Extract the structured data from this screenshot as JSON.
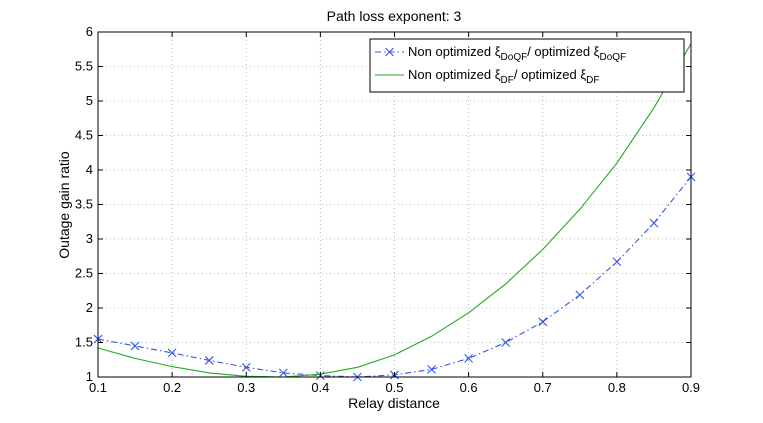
{
  "chart_data": {
    "type": "line",
    "title": "Path loss exponent: 3",
    "xlabel": "Relay distance",
    "ylabel": "Outage gain ratio",
    "xlim": [
      0.1,
      0.9
    ],
    "ylim": [
      1,
      6
    ],
    "xticks": [
      0.1,
      0.2,
      0.3,
      0.4,
      0.5,
      0.6,
      0.7,
      0.8,
      0.9
    ],
    "xtick_labels": [
      "0.1",
      "0.2",
      "0.3",
      "0.4",
      "0.5",
      "0.6",
      "0.7",
      "0.8",
      "0.9"
    ],
    "yticks": [
      1,
      1.5,
      2,
      2.5,
      3,
      3.5,
      4,
      4.5,
      5,
      5.5,
      6
    ],
    "ytick_labels": [
      "1",
      "1.5",
      "2",
      "2.5",
      "3",
      "3.5",
      "4",
      "4.5",
      "5",
      "5.5",
      "6"
    ],
    "grid": true,
    "legend_position": "top-right",
    "series": [
      {
        "name": "Non optimized ξDoQF/ optimized ξDoQF",
        "legend": {
          "prefix": "Non optimized ξ",
          "sub1": "DoQF",
          "middle": "/  optimized ξ",
          "sub2": "DoQF"
        },
        "color": "#3355ee",
        "line_style": "dash-dot",
        "marker": "x",
        "x": [
          0.1,
          0.15,
          0.2,
          0.25,
          0.3,
          0.35,
          0.4,
          0.45,
          0.5,
          0.55,
          0.6,
          0.65,
          0.7,
          0.75,
          0.8,
          0.85,
          0.9
        ],
        "y": [
          1.55,
          1.45,
          1.35,
          1.24,
          1.14,
          1.06,
          1.02,
          1.0,
          1.03,
          1.11,
          1.27,
          1.5,
          1.8,
          2.19,
          2.67,
          3.23,
          3.9
        ]
      },
      {
        "name": "Non optimized ξDF/ optimized ξDF",
        "legend": {
          "prefix": "Non optimized ξ",
          "sub1": "DF",
          "middle": "/  optimized ξ",
          "sub2": "DF"
        },
        "color": "#22aa22",
        "line_style": "solid",
        "marker": "none",
        "x": [
          0.1,
          0.15,
          0.2,
          0.25,
          0.3,
          0.35,
          0.4,
          0.45,
          0.5,
          0.55,
          0.6,
          0.65,
          0.7,
          0.75,
          0.8,
          0.85,
          0.9
        ],
        "y": [
          1.42,
          1.27,
          1.15,
          1.06,
          1.01,
          1.0,
          1.04,
          1.14,
          1.32,
          1.59,
          1.93,
          2.35,
          2.85,
          3.43,
          4.1,
          4.9,
          5.83
        ]
      }
    ]
  }
}
